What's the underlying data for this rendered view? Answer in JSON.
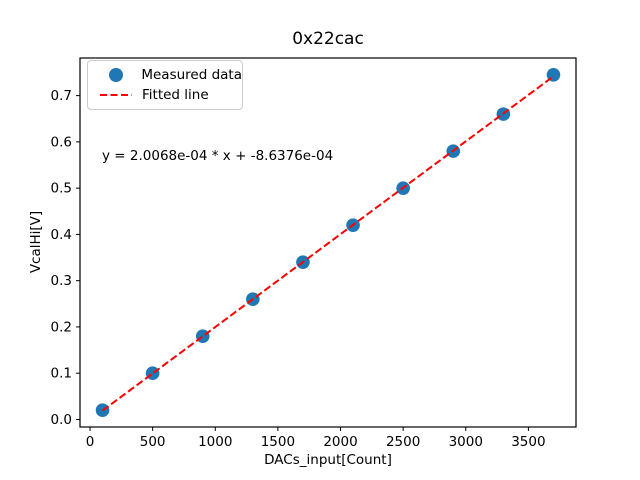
{
  "chart_data": {
    "type": "scatter",
    "title": "0x22cac",
    "xlabel": "DACs_input[Count]",
    "ylabel": "VcalHi[V]",
    "x": [
      100,
      500,
      900,
      1300,
      1700,
      2100,
      2500,
      2900,
      3300,
      3700
    ],
    "series": [
      {
        "name": "Measured data",
        "type": "scatter",
        "color": "#1f77b4",
        "values": [
          0.02,
          0.1,
          0.18,
          0.26,
          0.34,
          0.42,
          0.5,
          0.58,
          0.66,
          0.745
        ]
      },
      {
        "name": "Fitted line",
        "type": "dashed-line",
        "color": "#ff0000",
        "slope": 0.00020068,
        "intercept": -0.00086376,
        "x_start": 100,
        "x_end": 3700
      }
    ],
    "annotation": "y = 2.0068e-04 * x + -8.6376e-04",
    "xticks": [
      0,
      500,
      1000,
      1500,
      2000,
      2500,
      3000,
      3500
    ],
    "yticks": [
      0.0,
      0.1,
      0.2,
      0.3,
      0.4,
      0.5,
      0.6,
      0.7
    ],
    "xlim": [
      -80,
      3880
    ],
    "ylim": [
      -0.0163,
      0.7813
    ],
    "grid": false,
    "legend_position": "upper-left",
    "background_color": "#ffffff",
    "spine_color": "#000000"
  }
}
